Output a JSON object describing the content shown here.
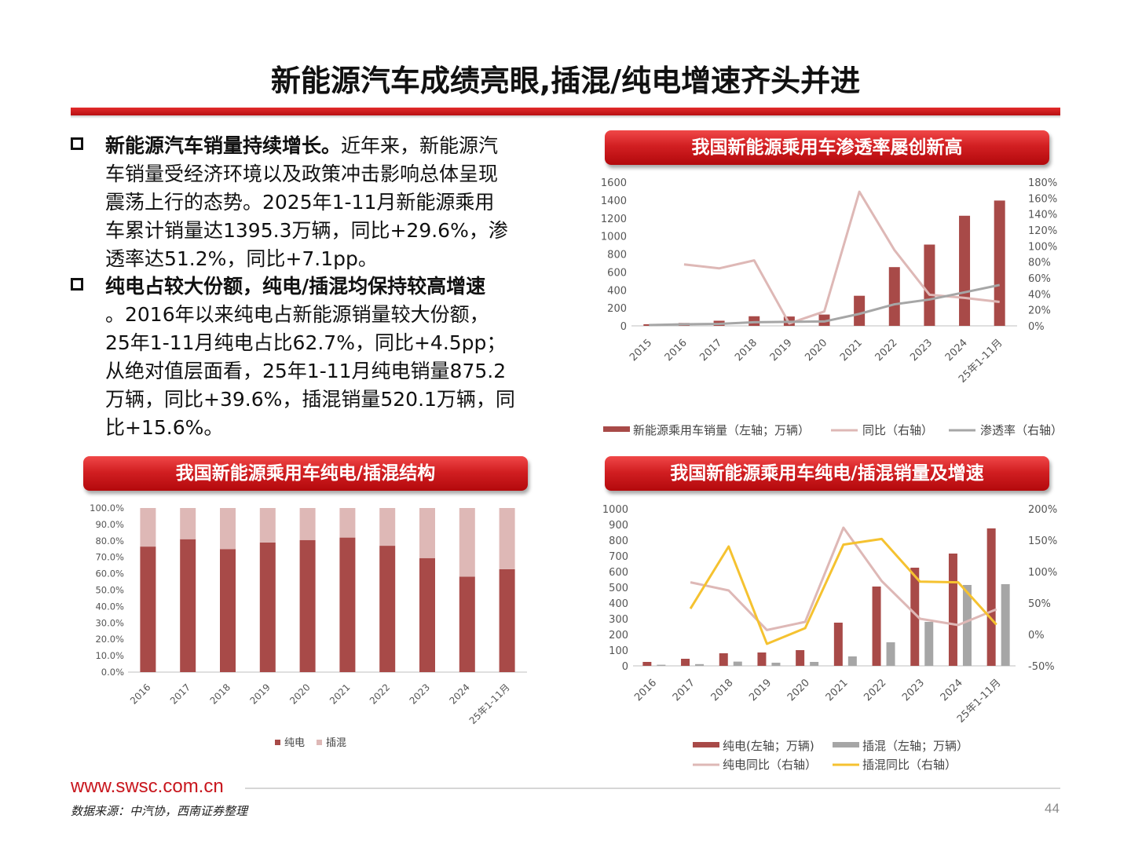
{
  "title": "新能源汽车成绩亮眼,插混/纯电增速齐头并进",
  "bullets": [
    {
      "bold": "新能源汽车销量持续增长。",
      "lines": [
        "近年来，新能源汽",
        "车销量受经济环境以及政策冲击影响总体呈现",
        "震荡上行的态势。2025年1-11月新能源乘用",
        "车累计销量达1395.3万辆，同比+29.6%，渗",
        "透率达51.2%，同比+7.1pp。"
      ]
    },
    {
      "bold": "纯电占较大份额，纯电/插混均保持较高增速",
      "lines": [
        "。2016年以来纯电占新能源销量较大份额，",
        "25年1-11月纯电占比62.7%，同比+4.5pp；",
        "从绝对值层面看，25年1-11月纯电销量875.2",
        "万辆，同比+39.6%，插混销量520.1万辆，同",
        "比+15.6%。"
      ]
    }
  ],
  "footer": {
    "url": "www.swsc.com.cn",
    "source": "数据来源：中汽协，西南证券整理",
    "page": "44"
  },
  "colors": {
    "dark_red": "#a84a48",
    "pink": "#deb8b6",
    "gray": "#a6a6a6",
    "yellow": "#f5c230",
    "banner_red": "#d21f22"
  },
  "chart_data": [
    {
      "type": "bar",
      "title": "我国新能源乘用车渗透率屡创新高",
      "categories": [
        "2015",
        "2016",
        "2017",
        "2018",
        "2019",
        "2020",
        "2021",
        "2022",
        "2023",
        "2024",
        "25年1-11月"
      ],
      "left_axis": {
        "ticks": [
          "0",
          "200",
          "400",
          "600",
          "800",
          "1000",
          "1200",
          "1400",
          "1600"
        ],
        "ylim": [
          0,
          1600
        ]
      },
      "right_axis": {
        "ticks": [
          "0%",
          "20%",
          "40%",
          "60%",
          "80%",
          "100%",
          "120%",
          "140%",
          "160%",
          "180%"
        ],
        "ylim": [
          0,
          180
        ]
      },
      "series": [
        {
          "name": "新能源乘用车销量（左轴；万辆）",
          "kind": "bar",
          "axis": "left",
          "values": [
            18,
            32,
            57,
            107,
            104,
            126,
            335,
            654,
            905,
            1226,
            1395.3
          ]
        },
        {
          "name": "同比（右轴）",
          "kind": "line",
          "axis": "right",
          "values": [
            null,
            77,
            72,
            82,
            3,
            18,
            168,
            95,
            39,
            35,
            30
          ]
        },
        {
          "name": "渗透率（右轴）",
          "kind": "line",
          "axis": "right",
          "values": [
            1,
            2,
            2.5,
            4.5,
            5,
            5.5,
            15,
            27,
            33,
            42,
            51.2
          ]
        }
      ],
      "legend": "bottom"
    },
    {
      "type": "bar",
      "title": "我国新能源乘用车纯电/插混结构",
      "categories": [
        "2016",
        "2017",
        "2018",
        "2019",
        "2020",
        "2021",
        "2022",
        "2023",
        "2024",
        "25年1-11月"
      ],
      "y_axis": {
        "ticks": [
          "0.0%",
          "10.0%",
          "20.0%",
          "30.0%",
          "40.0%",
          "50.0%",
          "60.0%",
          "70.0%",
          "80.0%",
          "90.0%",
          "100.0%"
        ],
        "ylim": [
          0,
          100
        ]
      },
      "series": [
        {
          "name": "纯电",
          "values": [
            76.5,
            81,
            75,
            79,
            80.5,
            82,
            77,
            69.5,
            58.2,
            62.7
          ]
        },
        {
          "name": "插混",
          "values": [
            23.5,
            19,
            25,
            21,
            19.5,
            18,
            23,
            30.5,
            41.8,
            37.3
          ]
        }
      ],
      "stacked": true,
      "legend": "bottom"
    },
    {
      "type": "bar",
      "title": "我国新能源乘用车纯电/插混销量及增速",
      "categories": [
        "2016",
        "2017",
        "2018",
        "2019",
        "2020",
        "2021",
        "2022",
        "2023",
        "2024",
        "25年1-11月"
      ],
      "left_axis": {
        "ticks": [
          "0",
          "100",
          "200",
          "300",
          "400",
          "500",
          "600",
          "700",
          "800",
          "900",
          "1000"
        ],
        "ylim": [
          0,
          1000
        ]
      },
      "right_axis": {
        "ticks": [
          "-50%",
          "0%",
          "50%",
          "100%",
          "150%",
          "200%"
        ],
        "ylim": [
          -50,
          200
        ]
      },
      "series": [
        {
          "name": "纯电(左轴；万辆)",
          "kind": "bar",
          "axis": "left",
          "values": [
            25,
            45,
            80,
            85,
            100,
            275,
            505,
            625,
            715,
            875.2
          ]
        },
        {
          "name": "插混（左轴；万辆）",
          "kind": "bar",
          "axis": "left",
          "values": [
            7,
            11,
            27,
            20,
            25,
            60,
            150,
            280,
            515,
            520.1
          ]
        },
        {
          "name": "纯电同比（右轴）",
          "kind": "line",
          "axis": "right",
          "values": [
            null,
            83,
            70,
            7,
            20,
            170,
            85,
            25,
            15,
            40
          ]
        },
        {
          "name": "插混同比（右轴）",
          "kind": "line",
          "axis": "right",
          "values": [
            null,
            41,
            140,
            -15,
            10,
            143,
            152,
            84,
            83,
            15.6
          ]
        }
      ],
      "legend": "bottom"
    }
  ]
}
